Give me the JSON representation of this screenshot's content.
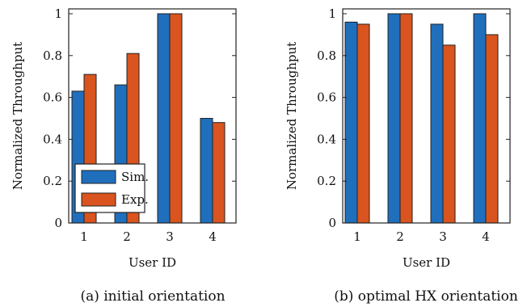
{
  "colors": {
    "sim": "#1f6fbd",
    "exp": "#d9541e",
    "axis": "#222222"
  },
  "legend": {
    "sim": "Sim.",
    "exp": "Exp."
  },
  "chart_data": [
    {
      "type": "bar",
      "caption": "(a) initial orientation",
      "xlabel": "User ID",
      "ylabel": "Normalized Throughput",
      "categories": [
        "1",
        "2",
        "3",
        "4"
      ],
      "ylim": [
        0,
        1
      ],
      "yticks": [
        "0",
        "0.2",
        "0.4",
        "0.6",
        "0.8",
        "1"
      ],
      "legend_position": "bottom-left",
      "series": [
        {
          "name": "Sim.",
          "values": [
            0.63,
            0.66,
            1.0,
            0.5
          ]
        },
        {
          "name": "Exp.",
          "values": [
            0.71,
            0.81,
            1.0,
            0.48
          ]
        }
      ]
    },
    {
      "type": "bar",
      "caption": "(b) optimal HX orientation",
      "xlabel": "User ID",
      "ylabel": "Normalized Throughput",
      "categories": [
        "1",
        "2",
        "3",
        "4"
      ],
      "ylim": [
        0,
        1
      ],
      "yticks": [
        "0",
        "0.2",
        "0.4",
        "0.6",
        "0.8",
        "1"
      ],
      "legend_position": "none",
      "series": [
        {
          "name": "Sim.",
          "values": [
            0.96,
            1.0,
            0.95,
            1.0
          ]
        },
        {
          "name": "Exp.",
          "values": [
            0.95,
            1.0,
            0.85,
            0.9
          ]
        }
      ]
    }
  ]
}
